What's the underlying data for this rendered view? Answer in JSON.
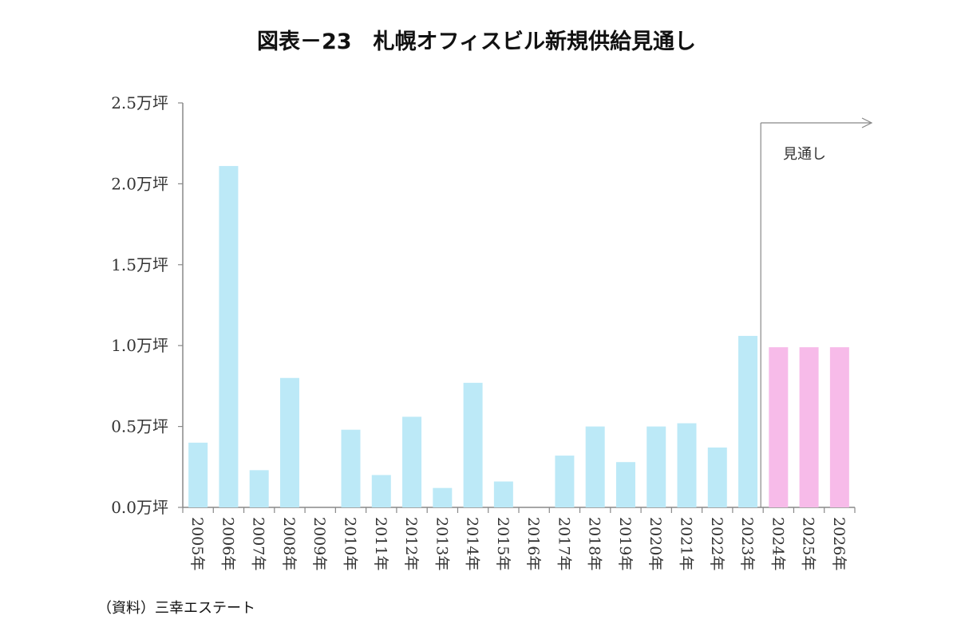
{
  "chart_data": {
    "type": "bar",
    "title": "図表－23　札幌オフィスビル新規供給見通し",
    "categories": [
      "2005年",
      "2006年",
      "2007年",
      "2008年",
      "2009年",
      "2010年",
      "2011年",
      "2012年",
      "2013年",
      "2014年",
      "2015年",
      "2016年",
      "2017年",
      "2018年",
      "2019年",
      "2020年",
      "2021年",
      "2022年",
      "2023年",
      "2024年",
      "2025年",
      "2026年"
    ],
    "values": [
      0.4,
      2.11,
      0.23,
      0.8,
      0.0,
      0.48,
      0.2,
      0.56,
      0.12,
      0.77,
      0.16,
      0.0,
      0.32,
      0.5,
      0.28,
      0.5,
      0.52,
      0.37,
      1.06,
      0.99,
      0.99,
      0.99
    ],
    "forecast_from_index": 19,
    "colors": {
      "actual": "#bce9f7",
      "forecast": "#f7bbe9",
      "axis": "#888888"
    },
    "ylim": [
      0,
      2.5
    ],
    "yticks": [
      {
        "value": 0.0,
        "label": "0.0万坪"
      },
      {
        "value": 0.5,
        "label": "0.5万坪"
      },
      {
        "value": 1.0,
        "label": "1.0万坪"
      },
      {
        "value": 1.5,
        "label": "1.5万坪"
      },
      {
        "value": 2.0,
        "label": "2.0万坪"
      },
      {
        "value": 2.5,
        "label": "2.5万坪"
      }
    ],
    "annotation": "見通し",
    "xlabel": "",
    "ylabel": ""
  },
  "source": "（資料）三幸エステート"
}
